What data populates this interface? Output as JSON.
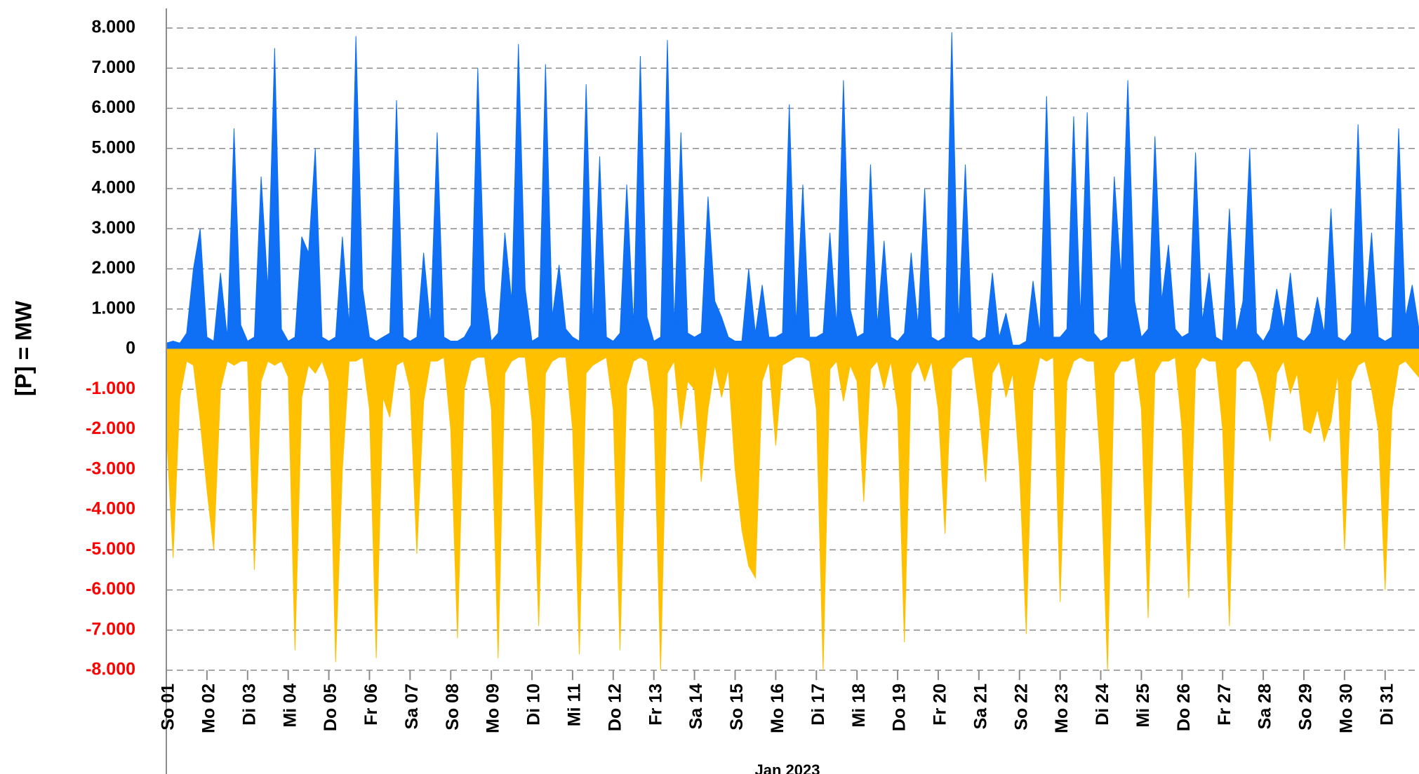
{
  "chart_data": {
    "type": "area",
    "y_label": "[P] = MW",
    "x_label": "Jan 2023",
    "ylim": [
      -8000,
      8000
    ],
    "yticks": [
      {
        "value": 8000,
        "label": "8.000"
      },
      {
        "value": 7000,
        "label": "7.000"
      },
      {
        "value": 6000,
        "label": "6.000"
      },
      {
        "value": 5000,
        "label": "5.000"
      },
      {
        "value": 4000,
        "label": "4.000"
      },
      {
        "value": 3000,
        "label": "3.000"
      },
      {
        "value": 2000,
        "label": "2.000"
      },
      {
        "value": 1000,
        "label": "1.000"
      },
      0,
      {
        "value": -1000,
        "label": "-1.000"
      },
      {
        "value": -2000,
        "label": "-2.000"
      },
      {
        "value": -3000,
        "label": "-3.000"
      },
      {
        "value": -4000,
        "label": "-4.000"
      },
      {
        "value": -5000,
        "label": "-5.000"
      },
      {
        "value": -6000,
        "label": "-6.000"
      },
      {
        "value": -7000,
        "label": "-7.000"
      },
      {
        "value": -8000,
        "label": "-8.000"
      }
    ],
    "xlim": [
      1,
      31.8333
    ],
    "xticks": [
      {
        "value": 1,
        "label": "So 01"
      },
      {
        "value": 2,
        "label": "Mo 02"
      },
      {
        "value": 3,
        "label": "Di 03"
      },
      {
        "value": 4,
        "label": "Mi 04"
      },
      {
        "value": 5,
        "label": "Do 05"
      },
      {
        "value": 6,
        "label": "Fr 06"
      },
      {
        "value": 7,
        "label": "Sa 07"
      },
      {
        "value": 8,
        "label": "So 08"
      },
      {
        "value": 9,
        "label": "Mo 09"
      },
      {
        "value": 10,
        "label": "Di 10"
      },
      {
        "value": 11,
        "label": "Mi 11"
      },
      {
        "value": 12,
        "label": "Do 12"
      },
      {
        "value": 13,
        "label": "Fr 13"
      },
      {
        "value": 14,
        "label": "Sa 14"
      },
      {
        "value": 15,
        "label": "So 15"
      },
      {
        "value": 16,
        "label": "Mo 16"
      },
      {
        "value": 17,
        "label": "Di 17"
      },
      {
        "value": 18,
        "label": "Mi 18"
      },
      {
        "value": 19,
        "label": "Do 19"
      },
      {
        "value": 20,
        "label": "Fr 20"
      },
      {
        "value": 21,
        "label": "Sa 21"
      },
      {
        "value": 22,
        "label": "So 22"
      },
      {
        "value": 23,
        "label": "Mo 23"
      },
      {
        "value": 24,
        "label": "Di 24"
      },
      {
        "value": 25,
        "label": "Mi 25"
      },
      {
        "value": 26,
        "label": "Do 26"
      },
      {
        "value": 27,
        "label": "Fr 27"
      },
      {
        "value": 28,
        "label": "Sa 28"
      },
      {
        "value": 29,
        "label": "So 29"
      },
      {
        "value": 30,
        "label": "Mo 30"
      },
      {
        "value": 31,
        "label": "Di 31"
      }
    ],
    "grid": true,
    "series": [
      {
        "color": "#0f6ff5",
        "values": [
          150,
          200,
          150,
          400,
          2000,
          3000,
          300,
          200,
          1900,
          300,
          5500,
          600,
          200,
          300,
          4300,
          1500,
          7500,
          500,
          200,
          300,
          2800,
          2400,
          5000,
          300,
          200,
          300,
          2800,
          600,
          7800,
          1500,
          300,
          200,
          300,
          400,
          6200,
          300,
          200,
          300,
          2400,
          600,
          5400,
          300,
          200,
          200,
          300,
          600,
          7000,
          1500,
          200,
          400,
          2900,
          1200,
          7600,
          1500,
          200,
          300,
          7100,
          800,
          2100,
          500,
          300,
          200,
          6600,
          600,
          4800,
          300,
          200,
          400,
          4100,
          600,
          7300,
          800,
          200,
          300,
          7700,
          600,
          5400,
          400,
          300,
          400,
          3800,
          1200,
          800,
          300,
          200,
          200,
          2000,
          400,
          1600,
          300,
          300,
          400,
          6100,
          600,
          4100,
          300,
          300,
          400,
          2900,
          600,
          6700,
          1000,
          300,
          400,
          4600,
          600,
          2700,
          300,
          200,
          400,
          2400,
          600,
          4000,
          300,
          200,
          300,
          7900,
          600,
          4600,
          300,
          200,
          300,
          1900,
          300,
          900,
          100,
          100,
          200,
          1700,
          400,
          6300,
          300,
          300,
          500,
          5800,
          800,
          5900,
          400,
          200,
          300,
          4300,
          1800,
          6700,
          1200,
          300,
          500,
          5300,
          1200,
          2600,
          500,
          300,
          400,
          4900,
          700,
          1900,
          300,
          200,
          3500,
          400,
          1200,
          5000,
          400,
          200,
          500,
          1500,
          500,
          1900,
          300,
          200,
          400,
          1300,
          400,
          3500,
          300,
          200,
          400,
          5600,
          900,
          2900,
          300,
          200,
          300,
          5500,
          800,
          1600,
          500
        ]
      },
      {
        "color": "#ffc000",
        "values": [
          -2000,
          -5200,
          -1200,
          -300,
          -400,
          -1800,
          -3500,
          -5000,
          -1000,
          -300,
          -400,
          -300,
          -300,
          -5500,
          -800,
          -300,
          -400,
          -300,
          -700,
          -7500,
          -1200,
          -400,
          -600,
          -300,
          -800,
          -7800,
          -3000,
          -300,
          -300,
          -200,
          -1500,
          -7700,
          -1200,
          -1700,
          -400,
          -300,
          -1000,
          -5100,
          -1300,
          -300,
          -300,
          -200,
          -2000,
          -7200,
          -1000,
          -300,
          -200,
          -200,
          -1500,
          -7700,
          -600,
          -300,
          -200,
          -200,
          -1800,
          -6900,
          -600,
          -300,
          -200,
          -200,
          -2000,
          -7600,
          -600,
          -400,
          -300,
          -200,
          -1500,
          -7500,
          -900,
          -300,
          -200,
          -300,
          -1500,
          -8000,
          -600,
          -300,
          -2000,
          -800,
          -1000,
          -3300,
          -1500,
          -400,
          -1200,
          -500,
          -3000,
          -4500,
          -5400,
          -5700,
          -800,
          -300,
          -2400,
          -400,
          -300,
          -200,
          -200,
          -300,
          -1500,
          -8000,
          -500,
          -300,
          -1300,
          -400,
          -800,
          -3800,
          -500,
          -300,
          -1000,
          -300,
          -1500,
          -7300,
          -600,
          -300,
          -800,
          -300,
          -1500,
          -4600,
          -500,
          -300,
          -200,
          -200,
          -1500,
          -3300,
          -600,
          -300,
          -1200,
          -600,
          -3000,
          -7100,
          -1000,
          -200,
          -300,
          -200,
          -6300,
          -800,
          -300,
          -200,
          -300,
          -300,
          -3000,
          -8000,
          -600,
          -300,
          -300,
          -200,
          -1500,
          -6700,
          -600,
          -300,
          -300,
          -200,
          -2000,
          -6200,
          -500,
          -200,
          -300,
          -300,
          -2000,
          -6900,
          -500,
          -300,
          -300,
          -600,
          -1300,
          -2300,
          -600,
          -300,
          -1100,
          -600,
          -2000,
          -2100,
          -1500,
          -2300,
          -1800,
          -600,
          -5000,
          -800,
          -400,
          -300,
          -1000,
          -2000,
          -6000,
          -1500,
          -400,
          -300,
          -500,
          -700
        ]
      }
    ]
  }
}
